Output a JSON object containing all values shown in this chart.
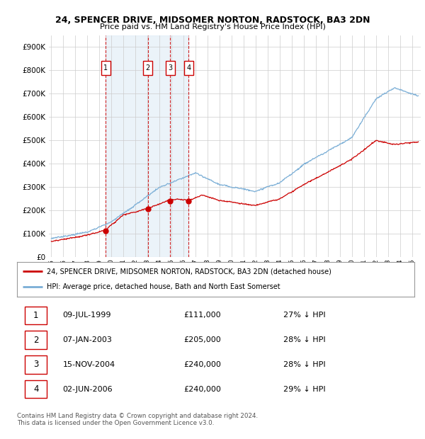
{
  "title": "24, SPENCER DRIVE, MIDSOMER NORTON, RADSTOCK, BA3 2DN",
  "subtitle": "Price paid vs. HM Land Registry's House Price Index (HPI)",
  "ylim": [
    0,
    950000
  ],
  "yticks": [
    0,
    100000,
    200000,
    300000,
    400000,
    500000,
    600000,
    700000,
    800000,
    900000
  ],
  "ytick_labels": [
    "£0",
    "£100K",
    "£200K",
    "£300K",
    "£400K",
    "£500K",
    "£600K",
    "£700K",
    "£800K",
    "£900K"
  ],
  "xlim_start": 1994.8,
  "xlim_end": 2025.7,
  "sales": [
    {
      "num": 1,
      "year": 1999.52,
      "price": 111000,
      "date": "09-JUL-1999",
      "pct": "27%",
      "label": "£111,000"
    },
    {
      "num": 2,
      "year": 2003.03,
      "price": 205000,
      "date": "07-JAN-2003",
      "pct": "28%",
      "label": "£205,000"
    },
    {
      "num": 3,
      "year": 2004.88,
      "price": 240000,
      "date": "15-NOV-2004",
      "pct": "28%",
      "label": "£240,000"
    },
    {
      "num": 4,
      "year": 2006.42,
      "price": 240000,
      "date": "02-JUN-2006",
      "pct": "29%",
      "label": "£240,000"
    }
  ],
  "red_line_color": "#cc0000",
  "blue_line_color": "#7aaed6",
  "shade_color": "#d8e8f5",
  "marker_box_color": "#cc0000",
  "grid_color": "#cccccc",
  "bg_color": "#ffffff",
  "legend_label_red": "24, SPENCER DRIVE, MIDSOMER NORTON, RADSTOCK, BA3 2DN (detached house)",
  "legend_label_blue": "HPI: Average price, detached house, Bath and North East Somerset",
  "footer": "Contains HM Land Registry data © Crown copyright and database right 2024.\nThis data is licensed under the Open Government Licence v3.0."
}
